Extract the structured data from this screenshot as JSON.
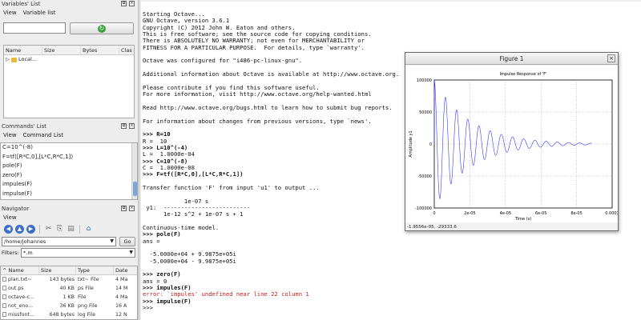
{
  "variables_panel": {
    "title": "Variables' List",
    "menu": [
      "View",
      "Variable list"
    ],
    "columns": [
      "Name",
      "Size",
      "Bytes",
      "Clas"
    ],
    "rows": [
      {
        "name": "Local..."
      }
    ]
  },
  "commands_panel": {
    "title": "Commands' List",
    "menu": [
      "View",
      "Command List"
    ],
    "items": [
      "C=10^(-8)",
      "F=tf([R*C,0],[L*C,R*C,1])",
      "pole(F)",
      "zero(F)",
      "impules(F)",
      "impulse(F)"
    ]
  },
  "navigator_panel": {
    "title": "Navigator",
    "menu": [
      "View"
    ],
    "path": "/home/johannes",
    "go_label": "Go",
    "filters_label": "Filters:",
    "filter_value": "*.m",
    "columns": [
      "Name",
      "Size",
      "Type",
      "Date"
    ],
    "files": [
      {
        "name": "plan.txt~",
        "size": "143 bytes",
        "type": "txt~ File",
        "date": "4 Ma"
      },
      {
        "name": "out.ps",
        "size": "40 KB",
        "type": "ps File",
        "date": "14 M"
      },
      {
        "name": "octave-c...",
        "size": "1 KB",
        "type": "File",
        "date": "4 Ma"
      },
      {
        "name": "not_eno...",
        "size": "36 KB",
        "type": "png File",
        "date": "16 A"
      },
      {
        "name": "missfont...",
        "size": "648 bytes",
        "type": "log File",
        "date": "12 N"
      }
    ]
  },
  "console": {
    "lines": [
      {
        "t": "Starting Octave..."
      },
      {
        "t": "GNU Octave, version 3.6.1"
      },
      {
        "t": "Copyright (C) 2012 John W. Eaton and others."
      },
      {
        "t": "This is free software; see the source code for copying conditions."
      },
      {
        "t": "There is ABSOLUTELY NO WARRANTY; not even for MERCHANTABILITY or"
      },
      {
        "t": "FITNESS FOR A PARTICULAR PURPOSE.  For details, type `warranty'."
      },
      {
        "t": ""
      },
      {
        "t": "Octave was configured for \"i486-pc-linux-gnu\"."
      },
      {
        "t": ""
      },
      {
        "t": "Additional information about Octave is available at http://www.octave.org."
      },
      {
        "t": ""
      },
      {
        "t": "Please contribute if you find this software useful."
      },
      {
        "t": "For more information, visit http://www.octave.org/help-wanted.html"
      },
      {
        "t": ""
      },
      {
        "t": "Read http://www.octave.org/bugs.html to learn how to submit bug reports."
      },
      {
        "t": ""
      },
      {
        "t": "For information about changes from previous versions, type `news'."
      },
      {
        "t": ""
      },
      {
        "t": ">>> R=10",
        "s": "bold"
      },
      {
        "t": "R =  10"
      },
      {
        "t": ">>> L=10^(-4)",
        "s": "bold"
      },
      {
        "t": "L =  1.0000e-04"
      },
      {
        "t": ">>> C=10^(-8)",
        "s": "bold"
      },
      {
        "t": "C =  1.0000e-08"
      },
      {
        "t": ">>> F=tf([R*C,0],[L*C,R*C,1])",
        "s": "bold"
      },
      {
        "t": ""
      },
      {
        "t": "Transfer function 'F' from input 'u1' to output ..."
      },
      {
        "t": ""
      },
      {
        "t": "            1e-07 s"
      },
      {
        "t": " y1:  -------------------------"
      },
      {
        "t": "      1e-12 s^2 + 1e-07 s + 1"
      },
      {
        "t": ""
      },
      {
        "t": "Continuous-time model."
      },
      {
        "t": ">>> pole(F)",
        "s": "bold"
      },
      {
        "t": "ans ="
      },
      {
        "t": ""
      },
      {
        "t": "  -5.0000e+04 + 9.9875e+05i"
      },
      {
        "t": "  -5.0000e+04 - 9.9875e+05i"
      },
      {
        "t": ""
      },
      {
        "t": ">>> zero(F)",
        "s": "bold"
      },
      {
        "t": "ans = 0"
      },
      {
        "t": ">>> impules(F)",
        "s": "bold"
      },
      {
        "t": "error: `impules' undefined near line 22 column 1",
        "s": "err"
      },
      {
        "t": ">>> impulse(F)",
        "s": "bold"
      },
      {
        "t": ">>>"
      }
    ]
  },
  "figure": {
    "window_title": "Figure 1",
    "status_text": "-1.9556e-05, -29333.6"
  },
  "chart_data": {
    "type": "line",
    "title": "Impulse Response of 'F'",
    "xlabel": "Time (s)",
    "ylabel": "Amplitude y1",
    "xlim": [
      0,
      0.0001
    ],
    "ylim": [
      -100000,
      100000
    ],
    "xticks": [
      "0",
      "2e-05",
      "4e-05",
      "6e-05",
      "8e-05",
      "0.0001"
    ],
    "yticks": [
      "100000",
      "50000",
      "0",
      "-50000",
      "-100000"
    ],
    "grid": true,
    "series": [
      {
        "model": "damped oscillation",
        "amplitude": 100000,
        "decay_rate": 50000,
        "frequency_rad": 998750,
        "t_end": 8.85e-05,
        "color": "#3a3aff"
      }
    ]
  }
}
